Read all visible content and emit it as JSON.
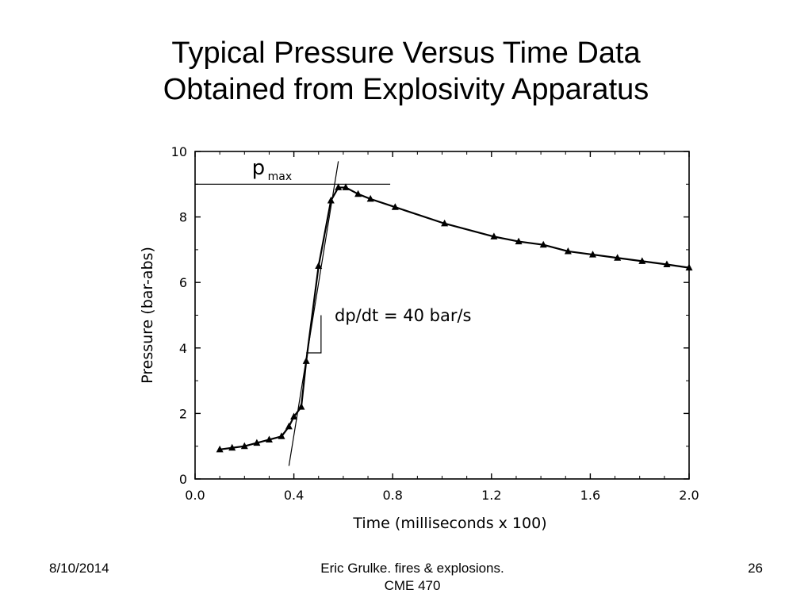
{
  "slide": {
    "title_line1": "Typical Pressure Versus Time Data",
    "title_line2": "Obtained from Explosivity Apparatus"
  },
  "footer": {
    "date": "8/10/2014",
    "credit_line1": "Eric Grulke.  fires & explosions.",
    "credit_line2": "CME 470",
    "page_number": "26"
  },
  "chart_data": {
    "type": "line",
    "title": "",
    "xlabel": "Time (milliseconds x 100)",
    "ylabel": "Pressure (bar-abs)",
    "xlim": [
      0.0,
      2.0
    ],
    "ylim": [
      0,
      10
    ],
    "x_tick_labels": [
      "0.0",
      "0.4",
      "0.8",
      "1.2",
      "1.6",
      "2.0"
    ],
    "y_tick_labels": [
      "0",
      "2",
      "4",
      "6",
      "8",
      "10"
    ],
    "grid": false,
    "marker": "triangle",
    "series": [
      {
        "x": [
          0.1,
          0.15,
          0.2,
          0.25,
          0.3,
          0.35,
          0.38,
          0.4,
          0.43,
          0.45,
          0.5,
          0.55,
          0.58,
          0.61,
          0.66,
          0.71,
          0.81,
          1.01,
          1.21,
          1.31,
          1.41,
          1.51,
          1.61,
          1.71,
          1.81,
          1.91,
          2.0
        ],
        "y": [
          0.9,
          0.95,
          1.0,
          1.1,
          1.2,
          1.3,
          1.6,
          1.9,
          2.2,
          3.6,
          6.5,
          8.5,
          8.9,
          8.9,
          8.7,
          8.55,
          8.3,
          7.8,
          7.4,
          7.25,
          7.15,
          6.95,
          6.85,
          6.75,
          6.65,
          6.55,
          6.45
        ]
      }
    ],
    "pmax": {
      "label": "p",
      "subscript": "max",
      "value": 9.0
    },
    "slope_annotation": {
      "label": "dp/dt = 40 bar/s"
    },
    "tangent_line": {
      "x": [
        0.38,
        0.58
      ],
      "y": [
        0.4,
        9.7
      ]
    },
    "slope_triangle": {
      "x": [
        0.45,
        0.51
      ],
      "y": [
        3.85,
        5.0
      ]
    }
  }
}
